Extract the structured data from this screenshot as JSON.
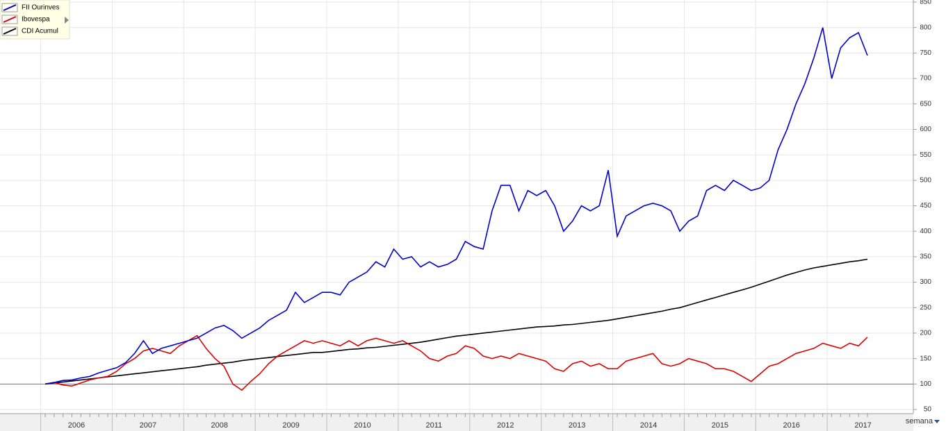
{
  "chart_data": {
    "type": "line",
    "categories": [
      null,
      null,
      null,
      "2006",
      null,
      null,
      null,
      null,
      null,
      null,
      null,
      "2007",
      null,
      null,
      null,
      null,
      null,
      null,
      null,
      "2008",
      null,
      null,
      null,
      null,
      null,
      null,
      null,
      "2009",
      null,
      null,
      null,
      null,
      null,
      null,
      null,
      "2010",
      null,
      null,
      null,
      null,
      null,
      null,
      null,
      "2011",
      null,
      null,
      null,
      null,
      null,
      null,
      null,
      "2012",
      null,
      null,
      null,
      null,
      null,
      null,
      null,
      "2013",
      null,
      null,
      null,
      null,
      null,
      null,
      null,
      "2014",
      null,
      null,
      null,
      null,
      null,
      null,
      null,
      "2015",
      null,
      null,
      null,
      null,
      null,
      null,
      null,
      "2016",
      null,
      null,
      null,
      null,
      null,
      null,
      null,
      "2017",
      null
    ],
    "series": [
      {
        "name": "FII Ourinves",
        "color": "#0000cc",
        "values": [
          100,
          103,
          107,
          108,
          112,
          115,
          122,
          127,
          132,
          142,
          160,
          185,
          160,
          170,
          175,
          180,
          185,
          190,
          200,
          210,
          215,
          205,
          190,
          200,
          210,
          225,
          235,
          245,
          280,
          260,
          270,
          280,
          280,
          275,
          300,
          310,
          320,
          340,
          330,
          365,
          345,
          350,
          330,
          340,
          330,
          335,
          345,
          380,
          370,
          365,
          440,
          490,
          490,
          440,
          480,
          470,
          480,
          450,
          400,
          420,
          450,
          440,
          450,
          520,
          390,
          430,
          440,
          450,
          455,
          450,
          440,
          400,
          420,
          430,
          480,
          490,
          480,
          500,
          490,
          480,
          485,
          500,
          560,
          600,
          650,
          690,
          740,
          800,
          700,
          760,
          780,
          790,
          745
        ]
      },
      {
        "name": "Ibovespa",
        "color": "#dd0000",
        "values": [
          100,
          103,
          98,
          96,
          102,
          108,
          112,
          115,
          125,
          140,
          150,
          165,
          170,
          165,
          160,
          175,
          185,
          195,
          170,
          150,
          135,
          100,
          88,
          105,
          120,
          140,
          155,
          165,
          175,
          185,
          180,
          185,
          180,
          175,
          185,
          175,
          185,
          190,
          185,
          180,
          185,
          175,
          165,
          150,
          145,
          155,
          160,
          175,
          170,
          155,
          150,
          155,
          150,
          160,
          155,
          150,
          145,
          130,
          125,
          140,
          145,
          135,
          140,
          130,
          130,
          145,
          150,
          155,
          160,
          140,
          135,
          140,
          150,
          145,
          140,
          130,
          130,
          125,
          115,
          105,
          120,
          135,
          140,
          150,
          160,
          165,
          170,
          180,
          175,
          170,
          180,
          175,
          192
        ]
      },
      {
        "name": "CDI Acumul",
        "color": "#000000",
        "values": [
          100,
          102,
          104,
          106,
          108,
          110,
          112,
          114,
          116,
          118,
          120,
          122,
          124,
          126,
          128,
          130,
          132,
          134,
          137,
          139,
          141,
          143,
          146,
          148,
          150,
          152,
          154,
          156,
          158,
          160,
          162,
          162,
          164,
          166,
          168,
          169,
          171,
          172,
          174,
          176,
          178,
          180,
          182,
          185,
          188,
          191,
          194,
          196,
          198,
          200,
          202,
          204,
          206,
          208,
          210,
          212,
          213,
          214,
          216,
          217,
          219,
          221,
          223,
          225,
          228,
          231,
          234,
          237,
          240,
          243,
          247,
          250,
          255,
          260,
          265,
          270,
          275,
          280,
          285,
          290,
          296,
          302,
          308,
          314,
          319,
          324,
          328,
          331,
          334,
          337,
          340,
          342,
          345
        ]
      }
    ],
    "ylim": [
      50,
      850
    ],
    "yticks": [
      50,
      100,
      150,
      200,
      250,
      300,
      350,
      400,
      450,
      500,
      550,
      600,
      650,
      700,
      750,
      800,
      850
    ],
    "reference_line": 100,
    "grid": true,
    "legend": "top-left",
    "period_label": "semana"
  }
}
